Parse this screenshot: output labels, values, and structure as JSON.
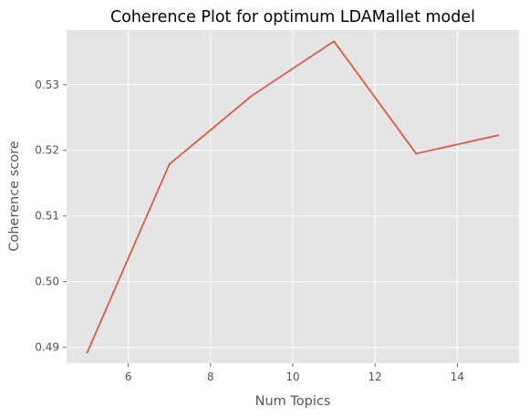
{
  "chart_data": {
    "type": "line",
    "title": "Coherence Plot for optimum LDAMallet model",
    "xlabel": "Num Topics",
    "ylabel": "Coherence score",
    "x": [
      5,
      7,
      9,
      11,
      13,
      15
    ],
    "series": [
      {
        "values": [
          0.4892,
          0.5179,
          0.5283,
          0.5366,
          0.5195,
          0.5223
        ]
      }
    ],
    "xlim": [
      4.5,
      15.5
    ],
    "ylim": [
      0.4876,
      0.5383
    ],
    "xticks": [
      6,
      8,
      10,
      12,
      14
    ],
    "xtick_labels": [
      "6",
      "8",
      "10",
      "12",
      "14"
    ],
    "yticks": [
      0.49,
      0.5,
      0.51,
      0.52,
      0.53
    ],
    "ytick_labels": [
      "0.49",
      "0.50",
      "0.51",
      "0.52",
      "0.53"
    ],
    "grid": true,
    "colors": {
      "background": "#e5e5e5",
      "grid": "#ffffff",
      "line": "#e24a33",
      "text": "#555555"
    }
  }
}
